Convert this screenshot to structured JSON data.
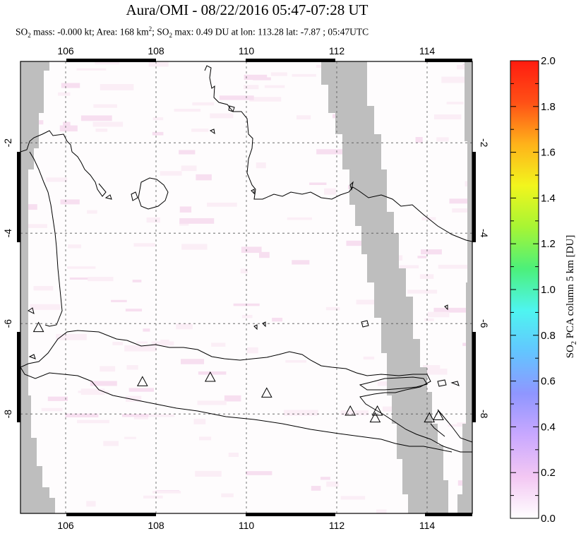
{
  "title": "Aura/OMI - 08/22/2016 05:47-07:28 UT",
  "subtitle": {
    "so2_mass_label": "SO",
    "so2_mass_sub": "2",
    "mass_text": " mass: -0.000 kt; Area: 168 km",
    "area_sup": "2",
    "sep": "; SO",
    "max_sub": "2",
    "max_text": " max: 0.49 DU at lon: 113.28 lat: -7.87 ; 05:47UTC"
  },
  "map": {
    "lon_ticks": [
      "106",
      "108",
      "110",
      "112",
      "114"
    ],
    "lat_ticks": [
      "-2",
      "-4",
      "-6",
      "-8"
    ],
    "lon_range": [
      105,
      115
    ],
    "lat_range": [
      -10.2,
      -0.2
    ],
    "volcanoes_lonlat": [
      [
        105.4,
        -6.1
      ],
      [
        107.7,
        -7.3
      ],
      [
        109.2,
        -7.2
      ],
      [
        110.45,
        -7.55
      ],
      [
        112.3,
        -7.95
      ],
      [
        112.9,
        -7.95
      ],
      [
        112.85,
        -8.1
      ],
      [
        114.05,
        -8.1
      ],
      [
        114.25,
        -8.05
      ]
    ]
  },
  "colorbar": {
    "label": "SO2 PCA column 5 km [DU]",
    "label_parts": [
      "SO",
      "2",
      " PCA column 5 km [DU]"
    ],
    "min": 0.0,
    "max": 2.0,
    "tick_labels": [
      "0.0",
      "0.2",
      "0.4",
      "0.6",
      "0.8",
      "1.0",
      "1.2",
      "1.4",
      "1.6",
      "1.8",
      "2.0"
    ],
    "colors": [
      "#ffffff",
      "#f3c7f3",
      "#c9a8ff",
      "#8f96ff",
      "#63c5ff",
      "#4ef5f0",
      "#4cf07a",
      "#a7f534",
      "#f2f51d",
      "#ffb21a",
      "#ff5016",
      "#ff1c10"
    ]
  },
  "colors": {
    "no_data": "#bebebe",
    "background_noise": "#fcf3f8",
    "coast": "#000000"
  }
}
